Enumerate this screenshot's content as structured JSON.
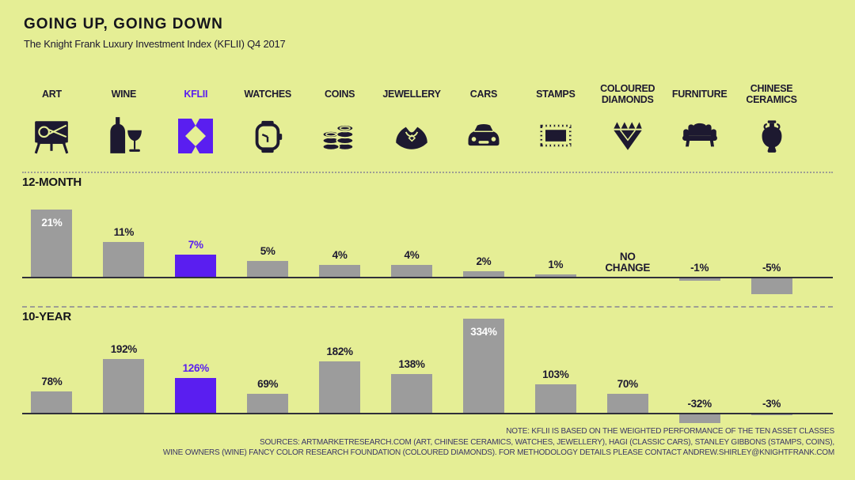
{
  "title": "GOING UP, GOING DOWN",
  "subtitle": "The Knight Frank Luxury Investment Index (KFLII) Q4 2017",
  "colors": {
    "background": "#e5ee95",
    "bar_gray": "#9c9c9c",
    "accent_purple": "#5a1ef0",
    "text_dark": "#1d1930",
    "title_dark": "#15141c",
    "note_text": "#3b3666",
    "baseline": "#30303a",
    "rule_gray": "#9e9e94",
    "inside_label": "#ffffff"
  },
  "categories": [
    {
      "label": "ART",
      "icon": "easel-icon",
      "highlight": false
    },
    {
      "label": "WINE",
      "icon": "wine-icon",
      "highlight": false
    },
    {
      "label": "KFLII",
      "icon": "kflii-logo-icon",
      "highlight": true
    },
    {
      "label": "WATCHES",
      "icon": "watch-icon",
      "highlight": false
    },
    {
      "label": "COINS",
      "icon": "coins-icon",
      "highlight": false
    },
    {
      "label": "JEWELLERY",
      "icon": "necklace-icon",
      "highlight": false
    },
    {
      "label": "CARS",
      "icon": "car-icon",
      "highlight": false
    },
    {
      "label": "STAMPS",
      "icon": "stamp-icon",
      "highlight": false
    },
    {
      "label": "COLOURED DIAMONDS",
      "icon": "diamond-icon",
      "highlight": false
    },
    {
      "label": "FURNITURE",
      "icon": "sofa-icon",
      "highlight": false
    },
    {
      "label": "CHINESE CERAMICS",
      "icon": "vase-icon",
      "highlight": false
    }
  ],
  "chart_data": {
    "type": "bar",
    "title": "The Knight Frank Luxury Investment Index (KFLII) Q4 2017",
    "categories": [
      "ART",
      "WINE",
      "KFLII",
      "WATCHES",
      "COINS",
      "JEWELLERY",
      "CARS",
      "STAMPS",
      "COLOURED DIAMONDS",
      "FURNITURE",
      "CHINESE CERAMICS"
    ],
    "series": [
      {
        "name": "12-MONTH",
        "values": [
          21,
          11,
          7,
          5,
          4,
          4,
          2,
          1,
          0,
          -1,
          -5
        ],
        "labels": [
          "21%",
          "11%",
          "7%",
          "5%",
          "4%",
          "4%",
          "2%",
          "1%",
          "NO\nCHANGE",
          "-1%",
          "-5%"
        ]
      },
      {
        "name": "10-YEAR",
        "values": [
          78,
          192,
          126,
          69,
          182,
          138,
          334,
          103,
          70,
          -32,
          -3
        ],
        "labels": [
          "78%",
          "192%",
          "126%",
          "69%",
          "182%",
          "138%",
          "334%",
          "103%",
          "70%",
          "-32%",
          "-3%"
        ]
      }
    ],
    "highlight_category": "KFLII",
    "grid": false,
    "legend": false,
    "value_unit": "%"
  },
  "notes": [
    "NOTE: KFLII IS BASED ON THE WEIGHTED PERFORMANCE OF THE TEN ASSET CLASSES",
    "SOURCES: ARTMARKETRESEARCH.COM (ART, CHINESE CERAMICS, WATCHES, JEWELLERY), HAGI (CLASSIC CARS), STANLEY GIBBONS (STAMPS, COINS),",
    "WINE OWNERS (WINE) FANCY COLOR RESEARCH FOUNDATION (COLOURED DIAMONDS). FOR METHODOLOGY DETAILS PLEASE CONTACT ANDREW.SHIRLEY@KNIGHTFRANK.COM"
  ]
}
